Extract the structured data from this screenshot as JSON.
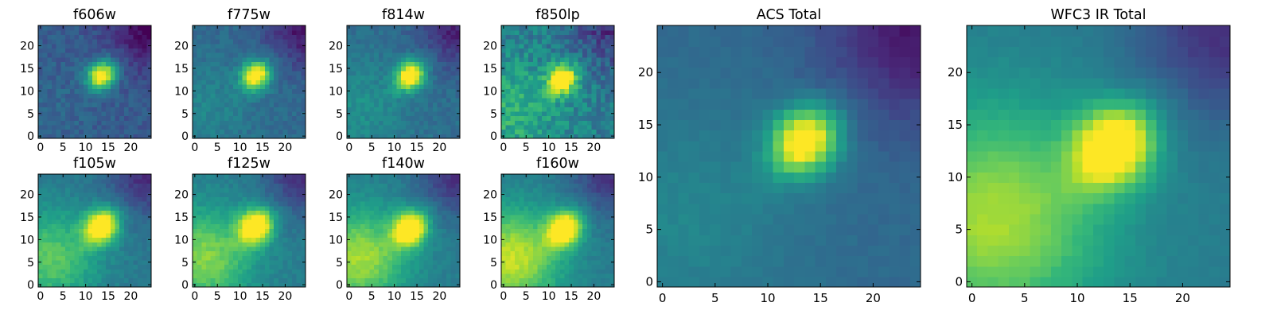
{
  "chart_data": [
    {
      "type": "heatmap",
      "title": "f606w",
      "grid": [
        25,
        25
      ],
      "xlim": [
        -0.5,
        24.5
      ],
      "ylim": [
        -0.5,
        24.5
      ],
      "xticks": [
        0,
        5,
        10,
        15,
        20
      ],
      "yticks": [
        0,
        5,
        10,
        15,
        20
      ],
      "cmap": "viridis",
      "peak": [
        13.5,
        13.5
      ],
      "peak_sigma": 2.2,
      "bg": 0.28,
      "halo": 0.05,
      "noise": 0.12,
      "seed": 11
    },
    {
      "type": "heatmap",
      "title": "f775w",
      "grid": [
        25,
        25
      ],
      "xlim": [
        -0.5,
        24.5
      ],
      "ylim": [
        -0.5,
        24.5
      ],
      "xticks": [
        0,
        5,
        10,
        15,
        20
      ],
      "yticks": [
        0,
        5,
        10,
        15,
        20
      ],
      "cmap": "viridis",
      "peak": [
        13.5,
        13.5
      ],
      "peak_sigma": 2.2,
      "bg": 0.34,
      "halo": 0.12,
      "noise": 0.1,
      "seed": 12
    },
    {
      "type": "heatmap",
      "title": "f814w",
      "grid": [
        25,
        25
      ],
      "xlim": [
        -0.5,
        24.5
      ],
      "ylim": [
        -0.5,
        24.5
      ],
      "xticks": [
        0,
        5,
        10,
        15,
        20
      ],
      "yticks": [
        0,
        5,
        10,
        15,
        20
      ],
      "cmap": "viridis",
      "peak": [
        13.5,
        13.5
      ],
      "peak_sigma": 2.2,
      "bg": 0.36,
      "halo": 0.14,
      "noise": 0.1,
      "seed": 13
    },
    {
      "type": "heatmap",
      "title": "f850lp",
      "grid": [
        25,
        25
      ],
      "xlim": [
        -0.5,
        24.5
      ],
      "ylim": [
        -0.5,
        24.5
      ],
      "xticks": [
        0,
        5,
        10,
        15,
        20
      ],
      "yticks": [
        0,
        5,
        10,
        15,
        20
      ],
      "cmap": "viridis",
      "peak": [
        13.0,
        12.5
      ],
      "peak_sigma": 2.2,
      "bg": 0.42,
      "halo": 0.22,
      "noise": 0.22,
      "seed": 14
    },
    {
      "type": "heatmap",
      "title": "f105w",
      "grid": [
        25,
        25
      ],
      "xlim": [
        -0.5,
        24.5
      ],
      "ylim": [
        -0.5,
        24.5
      ],
      "xticks": [
        0,
        5,
        10,
        15,
        20
      ],
      "yticks": [
        0,
        5,
        10,
        15,
        20
      ],
      "cmap": "viridis",
      "peak": [
        13.5,
        13.0
      ],
      "peak_sigma": 2.6,
      "bg": 0.4,
      "halo": 0.35,
      "noise": 0.08,
      "seed": 15
    },
    {
      "type": "heatmap",
      "title": "f125w",
      "grid": [
        25,
        25
      ],
      "xlim": [
        -0.5,
        24.5
      ],
      "ylim": [
        -0.5,
        24.5
      ],
      "xticks": [
        0,
        5,
        10,
        15,
        20
      ],
      "yticks": [
        0,
        5,
        10,
        15,
        20
      ],
      "cmap": "viridis",
      "peak": [
        13.5,
        13.0
      ],
      "peak_sigma": 2.6,
      "bg": 0.42,
      "halo": 0.4,
      "noise": 0.08,
      "seed": 16
    },
    {
      "type": "heatmap",
      "title": "f140w",
      "grid": [
        25,
        25
      ],
      "xlim": [
        -0.5,
        24.5
      ],
      "ylim": [
        -0.5,
        24.5
      ],
      "xticks": [
        0,
        5,
        10,
        15,
        20
      ],
      "yticks": [
        0,
        5,
        10,
        15,
        20
      ],
      "cmap": "viridis",
      "peak": [
        13.5,
        12.5
      ],
      "peak_sigma": 2.6,
      "bg": 0.42,
      "halo": 0.45,
      "noise": 0.07,
      "seed": 17
    },
    {
      "type": "heatmap",
      "title": "f160w",
      "grid": [
        25,
        25
      ],
      "xlim": [
        -0.5,
        24.5
      ],
      "ylim": [
        -0.5,
        24.5
      ],
      "xticks": [
        0,
        5,
        10,
        15,
        20
      ],
      "yticks": [
        0,
        5,
        10,
        15,
        20
      ],
      "cmap": "viridis",
      "peak": [
        13.5,
        12.5
      ],
      "peak_sigma": 2.6,
      "bg": 0.42,
      "halo": 0.5,
      "noise": 0.07,
      "seed": 18
    },
    {
      "type": "heatmap",
      "title": "ACS Total",
      "grid": [
        25,
        25
      ],
      "xlim": [
        -0.5,
        24.5
      ],
      "ylim": [
        -0.5,
        24.5
      ],
      "xticks": [
        0,
        5,
        10,
        15,
        20
      ],
      "yticks": [
        0,
        5,
        10,
        15,
        20
      ],
      "cmap": "viridis",
      "peak": [
        13.5,
        13.5
      ],
      "peak_sigma": 2.2,
      "bg": 0.34,
      "halo": 0.12,
      "noise": 0.04,
      "seed": 19
    },
    {
      "type": "heatmap",
      "title": "WFC3 IR Total",
      "grid": [
        25,
        25
      ],
      "xlim": [
        -0.5,
        24.5
      ],
      "ylim": [
        -0.5,
        24.5
      ],
      "xticks": [
        0,
        5,
        10,
        15,
        20
      ],
      "yticks": [
        0,
        5,
        10,
        15,
        20
      ],
      "cmap": "viridis",
      "peak": [
        13.5,
        13.0
      ],
      "peak_sigma": 2.6,
      "bg": 0.42,
      "halo": 0.45,
      "noise": 0.03,
      "seed": 20
    }
  ]
}
